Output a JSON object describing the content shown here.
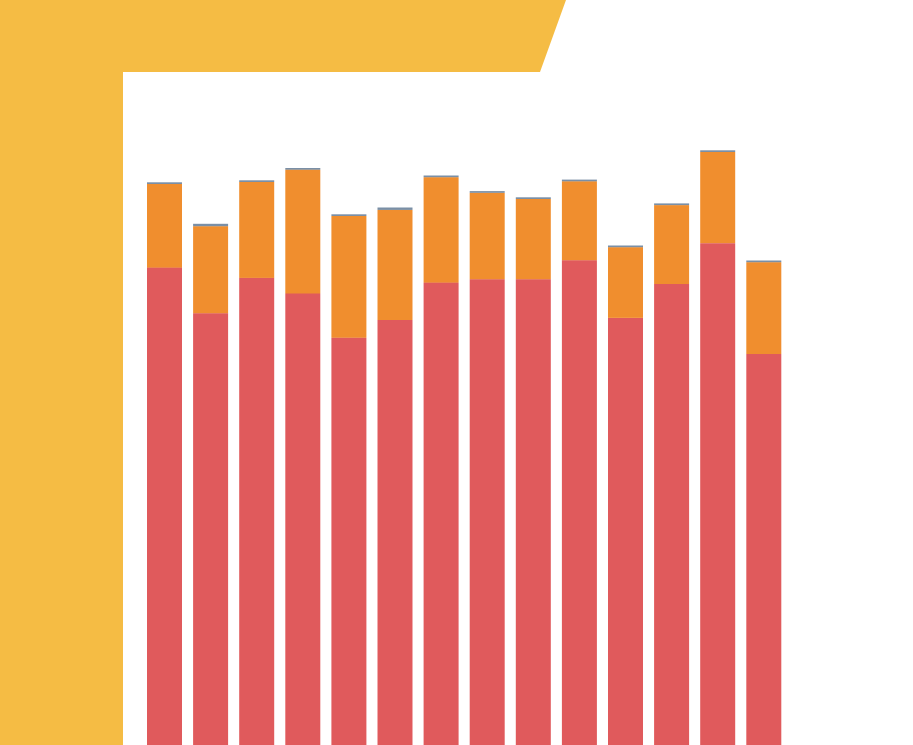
{
  "colors": {
    "frame": "#F5BC44",
    "background": "#FFFFFF",
    "cap": "#7A8FA6"
  },
  "chart_data": {
    "type": "bar",
    "stacked": true,
    "title": "",
    "xlabel": "",
    "ylabel": "",
    "ylim": [
      0,
      100
    ],
    "categories": [
      "",
      "",
      "",
      "",
      "",
      "",
      "",
      "",
      "",
      "",
      "",
      "",
      "",
      ""
    ],
    "series": [
      {
        "color": "#E05A5C",
        "values": [
          70.2,
          63.5,
          68.7,
          66.4,
          59.9,
          62.5,
          68.0,
          68.5,
          68.5,
          71.3,
          62.8,
          67.8,
          73.8,
          57.5
        ]
      },
      {
        "color": "#F08E2E",
        "values": [
          12.3,
          12.8,
          14.1,
          18.2,
          17.9,
          16.2,
          15.5,
          12.7,
          11.8,
          11.6,
          10.4,
          11.6,
          13.4,
          13.5
        ]
      },
      {
        "color": "#7A8FA6",
        "values": [
          0.25,
          0.35,
          0.25,
          0.25,
          0.25,
          0.35,
          0.25,
          0.25,
          0.25,
          0.25,
          0.25,
          0.25,
          0.25,
          0.25
        ]
      }
    ]
  }
}
